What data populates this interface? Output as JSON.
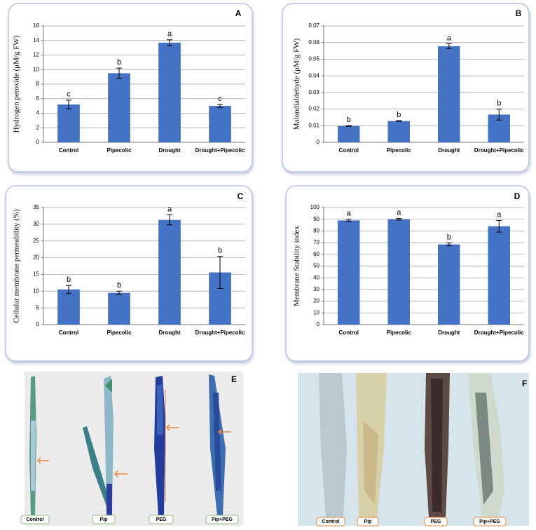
{
  "chart_data": [
    {
      "type": "bar",
      "panel": "A",
      "y_label": "Hydrogen peroxide (μM/g FW)",
      "categories": [
        "Control",
        "Pipecolic",
        "Drought",
        "Drought+Pipecolic"
      ],
      "values": [
        5.2,
        9.5,
        13.7,
        5.0
      ],
      "errors": [
        0.6,
        0.7,
        0.4,
        0.2
      ],
      "annotations": [
        "c",
        "b",
        "a",
        "c"
      ],
      "color": "#4472c4",
      "ylim": [
        0,
        16
      ],
      "yticks": [
        0,
        2,
        4,
        6,
        8,
        10,
        12,
        14,
        16
      ],
      "grid": true
    },
    {
      "type": "bar",
      "panel": "B",
      "y_label": "Malondialdehyde (μM/g FW)",
      "categories": [
        "Control",
        "Pipecolic",
        "Drought",
        "Drought+Pipecolic"
      ],
      "values": [
        0.0098,
        0.0128,
        0.0578,
        0.0167
      ],
      "errors": [
        0.0002,
        0.0002,
        0.0015,
        0.0033
      ],
      "annotations": [
        "b",
        "b",
        "a",
        "b"
      ],
      "color": "#4472c4",
      "ylim": [
        0,
        0.07
      ],
      "yticks": [
        0,
        0.01,
        0.02,
        0.03,
        0.04,
        0.05,
        0.06,
        0.07
      ],
      "grid": true
    },
    {
      "type": "bar",
      "panel": "C",
      "y_label": "Cellular membrane permeability (%)",
      "categories": [
        "Control",
        "Pipecolic",
        "Drought",
        "Drought+Pipecolic"
      ],
      "values": [
        10.5,
        9.5,
        31.3,
        15.6
      ],
      "errors": [
        1.2,
        0.5,
        1.5,
        4.8
      ],
      "annotations": [
        "b",
        "b",
        "a",
        "b"
      ],
      "color": "#4472c4",
      "ylim": [
        0,
        35
      ],
      "yticks": [
        0,
        5,
        10,
        15,
        20,
        25,
        30,
        35
      ],
      "grid": true
    },
    {
      "type": "bar",
      "panel": "D",
      "y_label": "Membrane Stability index",
      "categories": [
        "Control",
        "Pipecolic",
        "Drought",
        "Drought+Pipecolic"
      ],
      "values": [
        89,
        90,
        68.5,
        84
      ],
      "errors": [
        1,
        0.7,
        1.2,
        5
      ],
      "annotations": [
        "a",
        "a",
        "b",
        "a"
      ],
      "color": "#4472c4",
      "ylim": [
        0,
        100
      ],
      "yticks": [
        0,
        10,
        20,
        30,
        40,
        50,
        60,
        70,
        80,
        90,
        100
      ],
      "grid": true
    }
  ],
  "images": [
    {
      "label": "E",
      "captions": [
        "Control",
        "Pip",
        "PEG",
        "Pip+PEG"
      ]
    },
    {
      "label": "F",
      "captions": [
        "Control",
        "Pip",
        "PEG",
        "Pip+PEG"
      ]
    }
  ]
}
